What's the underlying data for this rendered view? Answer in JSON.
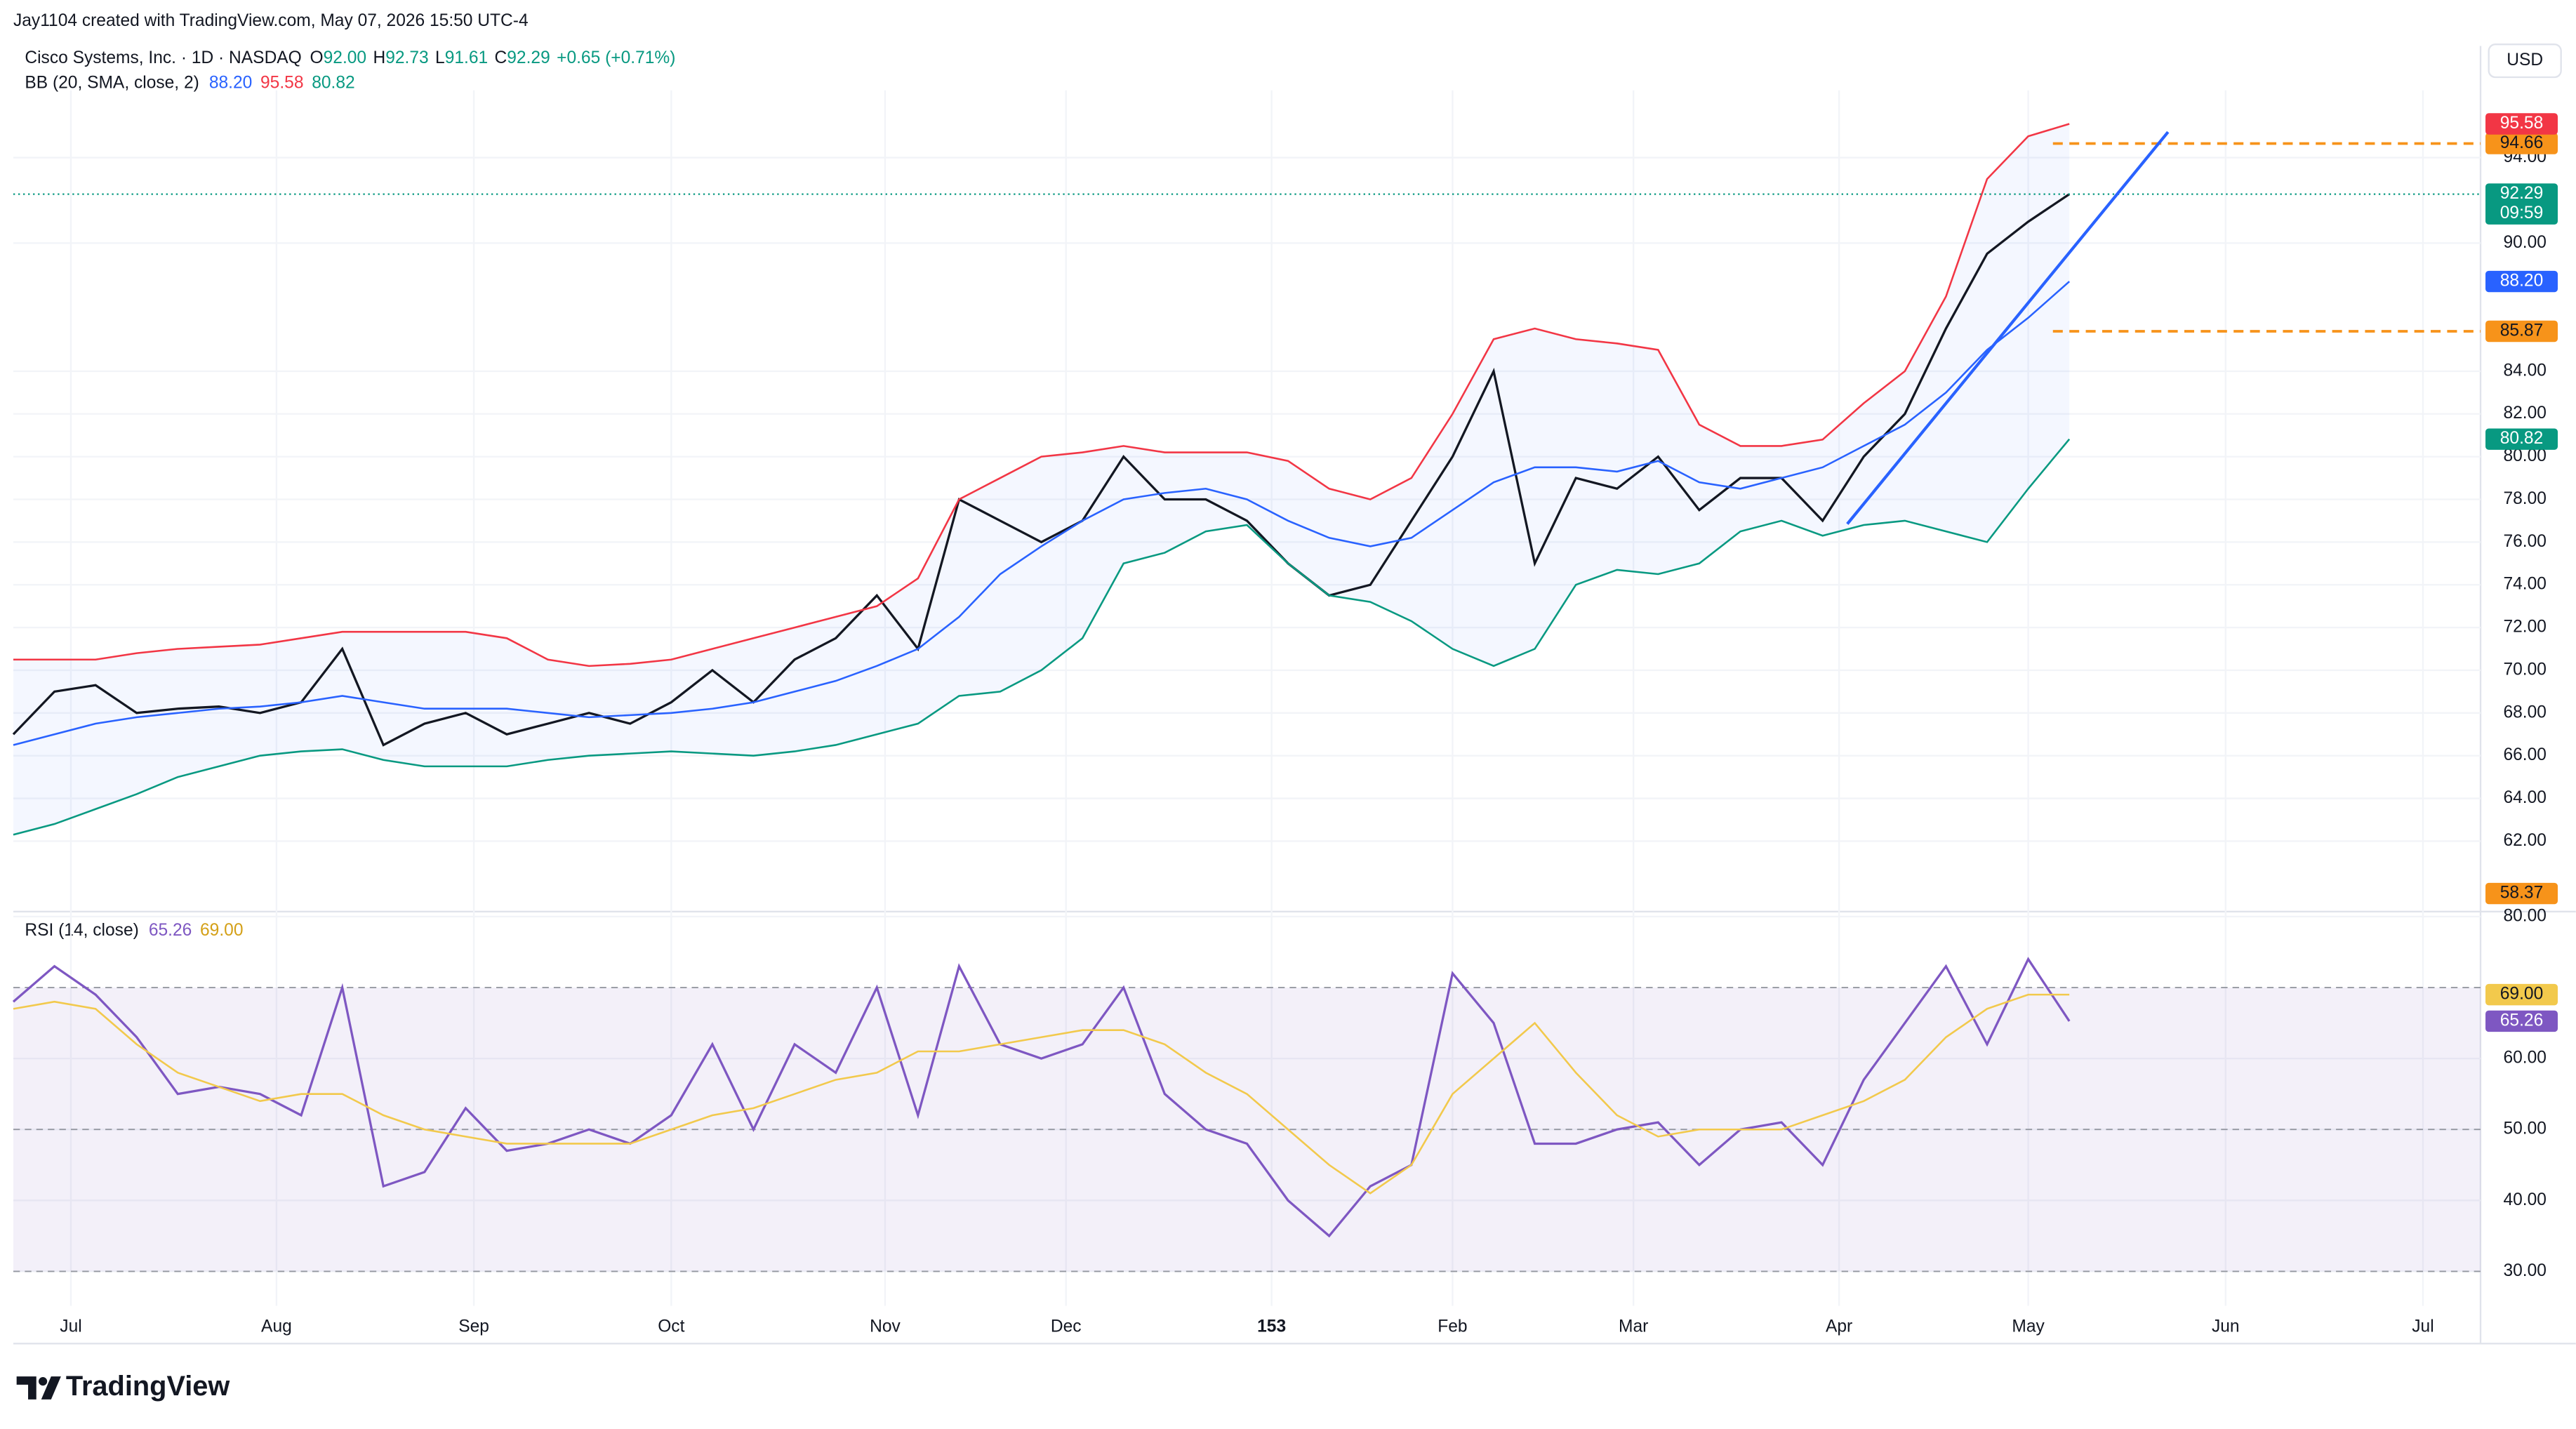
{
  "header": {
    "byline": "Jay1104 created with TradingView.com, May 07, 2026 15:50 UTC-4",
    "currency": "USD",
    "brand": "TradingView"
  },
  "chart_data": [
    {
      "type": "line",
      "title": "Cisco Systems, Inc. · 1D · NASDAQ",
      "ohlc": [
        {
          "key": "O",
          "value": {
            "value": 92,
            "label": "92.00"
          }
        },
        {
          "key": "H",
          "value": 92.73
        },
        {
          "key": "L",
          "value": 91.61
        },
        {
          "key": "C",
          "value": 92.29
        }
      ],
      "change": "+0.65 (+0.71%)",
      "indicator": "BB (20, SMA, close, 2)",
      "indicator_values": [
        {
          "value": 88.2,
          "label": "88.20"
        },
        95.58,
        80.82
      ],
      "x": [
        0,
        5,
        10,
        15,
        20,
        25,
        30,
        35,
        40,
        45,
        50,
        55,
        60,
        65,
        70,
        75,
        80,
        85,
        90,
        95,
        100,
        105,
        110,
        115,
        120,
        125,
        130,
        135,
        140,
        145,
        150,
        155,
        160,
        165,
        170,
        175,
        180,
        185,
        190,
        195,
        200,
        205,
        210,
        215,
        220,
        225,
        230,
        235,
        240,
        245,
        250
      ],
      "xlim": [
        0,
        300
      ],
      "xticks": [
        {
          "value": 7,
          "label": "Jul"
        },
        {
          "value": 32,
          "label": "Aug"
        },
        {
          "value": 56,
          "label": "Sep"
        },
        {
          "value": 80,
          "label": "Oct"
        },
        {
          "value": 106,
          "label": "Nov"
        },
        {
          "value": 128,
          "label": "Dec"
        },
        153,
        {
          "value": 175,
          "label": "Feb"
        },
        {
          "value": 197,
          "label": "Mar"
        },
        {
          "value": 222,
          "label": "Apr"
        },
        {
          "value": 245,
          "label": "May"
        },
        {
          "value": 269,
          "label": "Jun"
        },
        {
          "value": 293,
          "label": "Jul"
        }
      ],
      "ylim": [
        58.7,
        97.15
      ],
      "yticks": [
        {
          "value": 62,
          "label": "62.00"
        },
        {
          "value": 64,
          "label": "64.00"
        },
        {
          "value": 66,
          "label": "66.00"
        },
        {
          "value": 68,
          "label": "68.00"
        },
        {
          "value": 70,
          "label": "70.00"
        },
        {
          "value": 72,
          "label": "72.00"
        },
        {
          "value": 74,
          "label": "74.00"
        },
        {
          "value": 76,
          "label": "76.00"
        },
        {
          "value": 78,
          "label": "78.00"
        },
        {
          "value": 80,
          "label": "80.00"
        },
        {
          "value": 82,
          "label": "82.00"
        },
        {
          "value": 84,
          "label": "84.00"
        },
        {
          "value": 90,
          "label": "90.00"
        },
        {
          "value": 94,
          "label": "94.00"
        }
      ],
      "series": [
        {
          "color": "#131722",
          "values": [
            67,
            69,
            69.3,
            68,
            68.2,
            68.3,
            68,
            68.5,
            71,
            66.5,
            67.5,
            68,
            67,
            67.5,
            68,
            67.5,
            68.5,
            70,
            68.5,
            70.5,
            71.5,
            73.5,
            71,
            78,
            77,
            76,
            77,
            80,
            78,
            78,
            77,
            75,
            73.5,
            74,
            77,
            80,
            84,
            75,
            79,
            78.5,
            80,
            77.5,
            79,
            79,
            77,
            80,
            82,
            86,
            89.5,
            91,
            92.29
          ]
        },
        {
          "color": "#f23645",
          "values": [
            70.5,
            70.5,
            70.5,
            70.8,
            71,
            71.1,
            71.2,
            71.5,
            71.8,
            71.8,
            71.8,
            71.8,
            71.5,
            70.5,
            70.2,
            70.3,
            70.5,
            71,
            71.5,
            72,
            72.5,
            73,
            74.3,
            78,
            79,
            80,
            80.2,
            80.5,
            80.2,
            80.2,
            80.2,
            79.8,
            78.5,
            78,
            79,
            82,
            85.5,
            86,
            85.5,
            85.3,
            85,
            81.5,
            80.5,
            80.5,
            80.8,
            82.5,
            84,
            87.5,
            93,
            95,
            95.58
          ]
        },
        {
          "color": "#2962ff",
          "values": [
            66.5,
            67,
            67.5,
            67.8,
            68,
            68.2,
            68.3,
            68.5,
            68.8,
            68.5,
            68.2,
            68.2,
            68.2,
            68,
            67.8,
            67.9,
            68,
            68.2,
            68.5,
            69,
            69.5,
            70.2,
            71,
            72.5,
            74.5,
            75.8,
            77,
            78,
            78.3,
            78.5,
            78,
            77,
            76.2,
            75.8,
            76.2,
            77.5,
            78.8,
            79.5,
            79.5,
            79.3,
            79.8,
            78.8,
            78.5,
            79,
            79.5,
            80.5,
            81.5,
            83,
            85,
            86.5,
            88.2
          ]
        },
        {
          "color": "#089981",
          "values": [
            62.3,
            62.8,
            63.5,
            64.2,
            65,
            65.5,
            66,
            66.2,
            66.3,
            65.8,
            65.5,
            65.5,
            65.5,
            65.8,
            66,
            66.1,
            66.2,
            66.1,
            66,
            66.2,
            66.5,
            67,
            67.5,
            68.8,
            69,
            70,
            71.5,
            75,
            75.5,
            76.5,
            76.8,
            75,
            73.5,
            73.2,
            72.3,
            71,
            70.2,
            71,
            74,
            74.7,
            74.5,
            75,
            76.5,
            77,
            76.3,
            76.8,
            77,
            76.5,
            76,
            78.5,
            80.82
          ]
        }
      ],
      "band_fill": "#2962ff",
      "last_price": 92.29,
      "countdown": "09:59",
      "last_color": "#089981",
      "levels": [
        {
          "value": 94.66,
          "color": "#f7931a"
        },
        {
          "value": 85.87,
          "color": "#f7931a"
        },
        {
          "value": 58.37,
          "color": "#f7931a"
        }
      ],
      "trendline": {
        "x": [
          223,
          262
        ],
        "values": [
          76.85,
          95.2
        ],
        "color": "#2962ff"
      }
    },
    {
      "type": "line",
      "title": "RSI (14, close)",
      "legend_values": [
        65.26,
        {
          "value": 69,
          "label": "69.00"
        }
      ],
      "ylim": [
        25.15,
        80.7
      ],
      "yticks": [
        {
          "value": 30,
          "label": "30.00"
        },
        {
          "value": 40,
          "label": "40.00"
        },
        {
          "value": 50,
          "label": "50.00"
        },
        {
          "value": 60,
          "label": "60.00"
        },
        {
          "value": 80,
          "label": "80.00"
        }
      ],
      "bands": [
        30,
        50,
        70
      ],
      "band_color": "#7e57c2",
      "series": [
        {
          "color": "#7e57c2",
          "values": [
            68,
            73,
            69,
            63,
            55,
            56,
            55,
            52,
            70,
            42,
            44,
            53,
            47,
            48,
            50,
            48,
            52,
            62,
            50,
            62,
            58,
            70,
            52,
            73,
            62,
            60,
            62,
            70,
            55,
            50,
            48,
            40,
            35,
            42,
            45,
            72,
            65,
            48,
            48,
            50,
            51,
            45,
            50,
            51,
            45,
            57,
            65,
            73,
            62,
            74,
            65.26
          ]
        },
        {
          "color": "#f2c94c",
          "values": [
            67,
            68,
            67,
            62,
            58,
            56,
            54,
            55,
            55,
            52,
            50,
            49,
            48,
            48,
            48,
            48,
            50,
            52,
            53,
            55,
            57,
            58,
            61,
            61,
            62,
            63,
            64,
            64,
            62,
            58,
            55,
            50,
            45,
            41,
            45,
            55,
            60,
            65,
            58,
            52,
            49,
            50,
            50,
            50,
            52,
            54,
            57,
            63,
            67,
            69,
            69
          ]
        }
      ]
    }
  ]
}
